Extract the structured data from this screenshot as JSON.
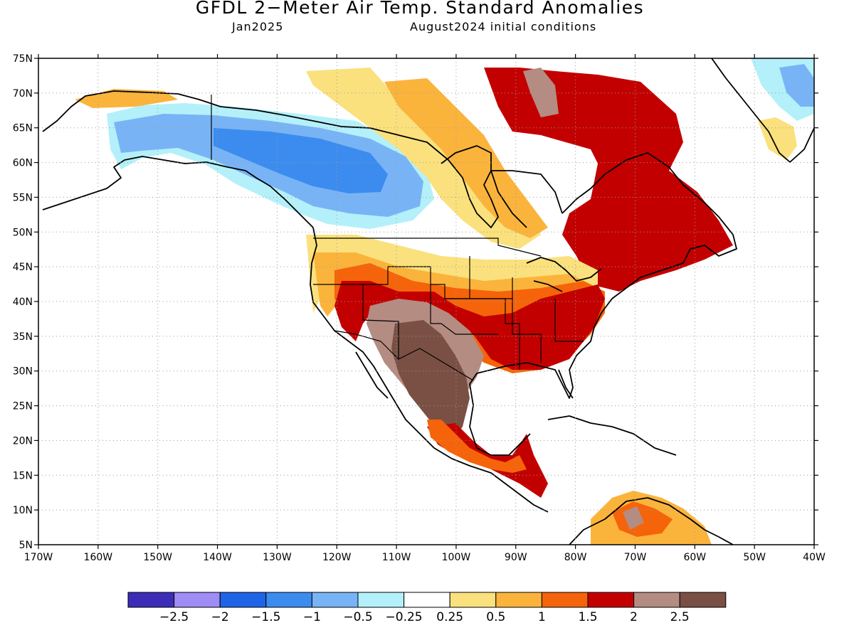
{
  "title": "GFDL 2−Meter Air Temp. Standard Anomalies",
  "subtitle_left": "Jan2025",
  "subtitle_right": "August2024 initial conditions",
  "lat_labels": [
    "75N",
    "70N",
    "65N",
    "60N",
    "55N",
    "50N",
    "45N",
    "40N",
    "35N",
    "30N",
    "25N",
    "20N",
    "15N",
    "10N",
    "5N"
  ],
  "lon_labels": [
    "170W",
    "160W",
    "150W",
    "140W",
    "130W",
    "120W",
    "110W",
    "100W",
    "90W",
    "80W",
    "70W",
    "60W",
    "50W",
    "40W"
  ],
  "colorbar": {
    "colors": [
      "#3c2db8",
      "#a08cf5",
      "#1f64e6",
      "#3c8cf0",
      "#78b4f5",
      "#b4f0fa",
      "#ffffff",
      "#fae17d",
      "#fab43c",
      "#f5640a",
      "#c30000",
      "#b48c82",
      "#7a5044"
    ],
    "labels": [
      "−2.5",
      "−2",
      "−1.5",
      "−1",
      "−0.5",
      "−0.25",
      "0.25",
      "0.5",
      "1",
      "1.5",
      "2",
      "2.5"
    ]
  },
  "map_regions": [
    {
      "name": "alaska-yukon-cold",
      "color": "#b4f0fa"
    },
    {
      "name": "western-canada-cold",
      "color": "#78b4f5"
    },
    {
      "name": "western-canada-core-cold",
      "color": "#3c8cf0"
    },
    {
      "name": "hudson-corridor-warm",
      "color": "#fae17d"
    },
    {
      "name": "hudson-corridor-core",
      "color": "#fab43c"
    },
    {
      "name": "quebec-labrador-warm",
      "color": "#c30000"
    },
    {
      "name": "eastern-us-warm",
      "color": "#f5640a"
    },
    {
      "name": "southeast-us-warm",
      "color": "#c30000"
    },
    {
      "name": "southwest-us-anomaly",
      "color": "#b48c82"
    },
    {
      "name": "mexico-anomaly",
      "color": "#7a5044"
    },
    {
      "name": "greenland-cold",
      "color": "#b4f0fa"
    },
    {
      "name": "venezuela-warm",
      "color": "#fab43c"
    }
  ]
}
